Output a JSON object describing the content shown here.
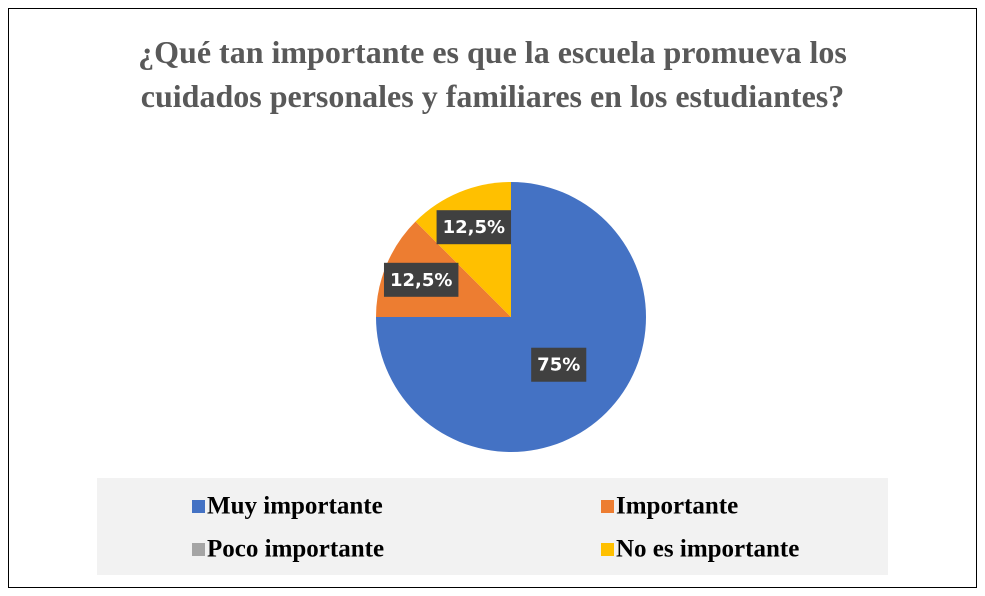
{
  "chart_data": {
    "type": "pie",
    "title": "¿Qué tan importante es que la escuela promueva los cuidados personales y familiares en los estudiantes?",
    "categories": [
      "Muy importante",
      "Importante",
      "Poco importante",
      "No es importante"
    ],
    "values": [
      75,
      12.5,
      0,
      12.5
    ],
    "value_labels": [
      "75%",
      "12,5%",
      null,
      "12,5%"
    ],
    "colors": [
      "#4472c4",
      "#ed7d31",
      "#a5a5a5",
      "#ffc000"
    ],
    "legend": "bottom"
  }
}
